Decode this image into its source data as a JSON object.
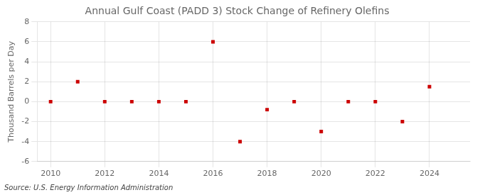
{
  "chart_data": {
    "type": "scatter",
    "title": "Annual Gulf Coast (PADD 3) Stock Change of Refinery Olefins",
    "ylabel": "Thousand Barrels per Day",
    "source": "Source: U.S. Energy Information Administration",
    "x": [
      2010,
      2011,
      2012,
      2013,
      2014,
      2015,
      2016,
      2017,
      2018,
      2019,
      2020,
      2021,
      2022,
      2023,
      2024
    ],
    "values": [
      0.0,
      2.0,
      0.0,
      0.0,
      0.0,
      0.0,
      6.0,
      -4.0,
      -0.8,
      0.0,
      -3.0,
      0.0,
      0.0,
      -2.0,
      1.5
    ],
    "color": "#cc0000",
    "marker": "square",
    "xlim": [
      2009.5,
      2025.5
    ],
    "xticks": [
      2010,
      2012,
      2014,
      2016,
      2018,
      2020,
      2022,
      2024
    ],
    "ylim": [
      -6,
      8
    ],
    "yticks": [
      -6,
      -4,
      -2,
      0,
      2,
      4,
      6,
      8
    ],
    "grid": true
  }
}
